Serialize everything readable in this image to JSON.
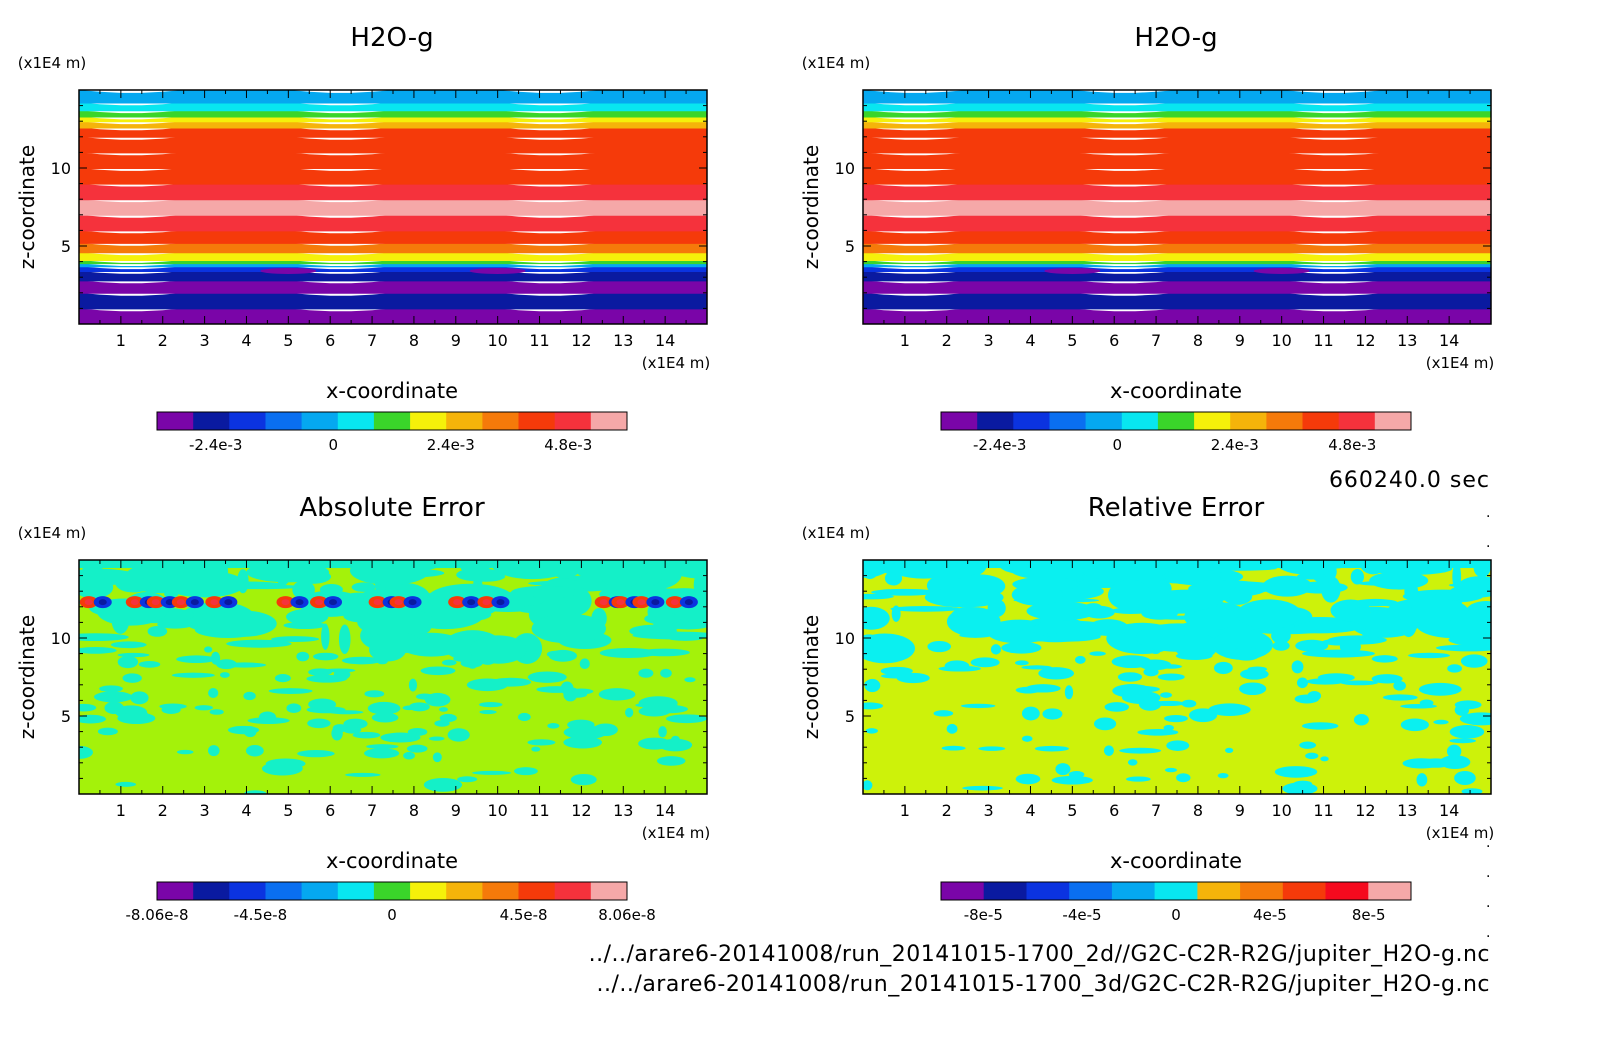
{
  "colors": {
    "palette13": [
      "#7a05a8",
      "#0a1aa0",
      "#0b33e0",
      "#0a6ff0",
      "#05a8f0",
      "#08e6f0",
      "#3ad52a",
      "#f5f10a",
      "#f5b40a",
      "#f57a0a",
      "#f53a0a",
      "#f5323c",
      "#f5a8a8"
    ],
    "palette11": [
      "#7a05a8",
      "#0a1aa0",
      "#0b33e0",
      "#0a6ff0",
      "#05a8f0",
      "#08e6f0",
      "#f5b40a",
      "#f57a0a",
      "#f53a0a",
      "#f50a1e",
      "#f5a8a8"
    ],
    "bg_abs": "#a4f20a",
    "bg_rel": "#cdf20a",
    "cyan_abs": "#14f0c8",
    "cyan_rel": "#0af0f0"
  },
  "time_label": "660240.0 sec",
  "files": [
    "../../arare6-20141008/run_20141015-1700_2d//G2C-C2R-R2G/jupiter_H2O-g.nc",
    "../../arare6-20141008/run_20141015-1700_3d/G2C-C2R-R2G/jupiter_H2O-g.nc"
  ],
  "chart_data": [
    {
      "type": "heatmap",
      "title": "H2O-g",
      "xlabel": "x-coordinate",
      "ylabel": "z-coordinate",
      "x_unit": "(x1E4 m)",
      "y_unit": "(x1E4 m)",
      "x_ticks": [
        "1",
        "2",
        "3",
        "4",
        "5",
        "6",
        "7",
        "8",
        "9",
        "10",
        "11",
        "12",
        "13",
        "14"
      ],
      "y_ticks": [
        "5",
        "10"
      ],
      "xlim": [
        0,
        15
      ],
      "ylim": [
        0,
        15
      ],
      "colorbar_ticks": [
        "-2.4e-3",
        "0",
        "2.4e-3",
        "4.8e-3"
      ],
      "levels": [
        -0.0036,
        -0.003,
        -0.0024,
        -0.0018,
        -0.0012,
        -0.0006,
        0,
        0.0006,
        0.0012,
        0.0018,
        0.0024,
        0.003,
        0.0036,
        0.0042,
        0.0048,
        0.0054,
        0.006
      ],
      "profile_z": [
        0,
        1,
        2,
        2.8,
        3.4,
        3.7,
        3.9,
        4.1,
        4.6,
        5.2,
        6,
        7,
        8,
        9,
        10,
        11,
        12,
        12.6,
        13,
        13.3,
        13.7,
        14.2,
        15
      ],
      "profile_level": [
        0,
        1,
        0,
        1,
        2,
        4,
        6,
        7,
        9,
        10,
        11,
        12,
        11,
        10,
        10,
        10,
        10,
        8,
        7,
        6,
        5,
        4,
        4
      ]
    },
    {
      "type": "heatmap",
      "title": "H2O-g",
      "xlabel": "x-coordinate",
      "ylabel": "z-coordinate",
      "x_unit": "(x1E4 m)",
      "y_unit": "(x1E4 m)",
      "x_ticks": [
        "1",
        "2",
        "3",
        "4",
        "5",
        "6",
        "7",
        "8",
        "9",
        "10",
        "11",
        "12",
        "13",
        "14"
      ],
      "y_ticks": [
        "5",
        "10"
      ],
      "xlim": [
        0,
        15
      ],
      "ylim": [
        0,
        15
      ],
      "colorbar_ticks": [
        "-2.4e-3",
        "0",
        "2.4e-3",
        "4.8e-3"
      ],
      "levels": [
        -0.0036,
        -0.003,
        -0.0024,
        -0.0018,
        -0.0012,
        -0.0006,
        0,
        0.0006,
        0.0012,
        0.0018,
        0.0024,
        0.003,
        0.0036,
        0.0042,
        0.0048,
        0.0054,
        0.006
      ],
      "profile_z": [
        0,
        1,
        2,
        2.8,
        3.4,
        3.7,
        3.9,
        4.1,
        4.6,
        5.2,
        6,
        7,
        8,
        9,
        10,
        11,
        12,
        12.6,
        13,
        13.3,
        13.7,
        14.2,
        15
      ],
      "profile_level": [
        0,
        1,
        0,
        1,
        2,
        4,
        6,
        7,
        9,
        10,
        11,
        12,
        11,
        10,
        10,
        10,
        10,
        8,
        7,
        6,
        5,
        4,
        4
      ]
    },
    {
      "type": "heatmap",
      "title": "Absolute Error",
      "xlabel": "x-coordinate",
      "ylabel": "z-coordinate",
      "x_unit": "(x1E4 m)",
      "y_unit": "(x1E4 m)",
      "x_ticks": [
        "1",
        "2",
        "3",
        "4",
        "5",
        "6",
        "7",
        "8",
        "9",
        "10",
        "11",
        "12",
        "13",
        "14"
      ],
      "y_ticks": [
        "5",
        "10"
      ],
      "xlim": [
        0,
        15
      ],
      "ylim": [
        0,
        15
      ],
      "colorbar_ticks": [
        "-8.06e-8",
        "-4.5e-8",
        "0",
        "4.5e-8",
        "8.06e-8"
      ],
      "dipole_z": 12.3,
      "dipole_x": [
        0.4,
        1.5,
        2.0,
        2.6,
        3.4,
        5.1,
        5.9,
        7.3,
        7.8,
        9.2,
        9.9,
        12.7,
        13.1,
        13.6,
        14.4
      ]
    },
    {
      "type": "heatmap",
      "title": "Relative Error",
      "xlabel": "x-coordinate",
      "ylabel": "z-coordinate",
      "x_unit": "(x1E4 m)",
      "y_unit": "(x1E4 m)",
      "x_ticks": [
        "1",
        "2",
        "3",
        "4",
        "5",
        "6",
        "7",
        "8",
        "9",
        "10",
        "11",
        "12",
        "13",
        "14"
      ],
      "y_ticks": [
        "5",
        "10"
      ],
      "xlim": [
        0,
        15
      ],
      "ylim": [
        0,
        15
      ],
      "colorbar_ticks": [
        "-8e-5",
        "-4e-5",
        "0",
        "4e-5",
        "8e-5"
      ]
    }
  ]
}
